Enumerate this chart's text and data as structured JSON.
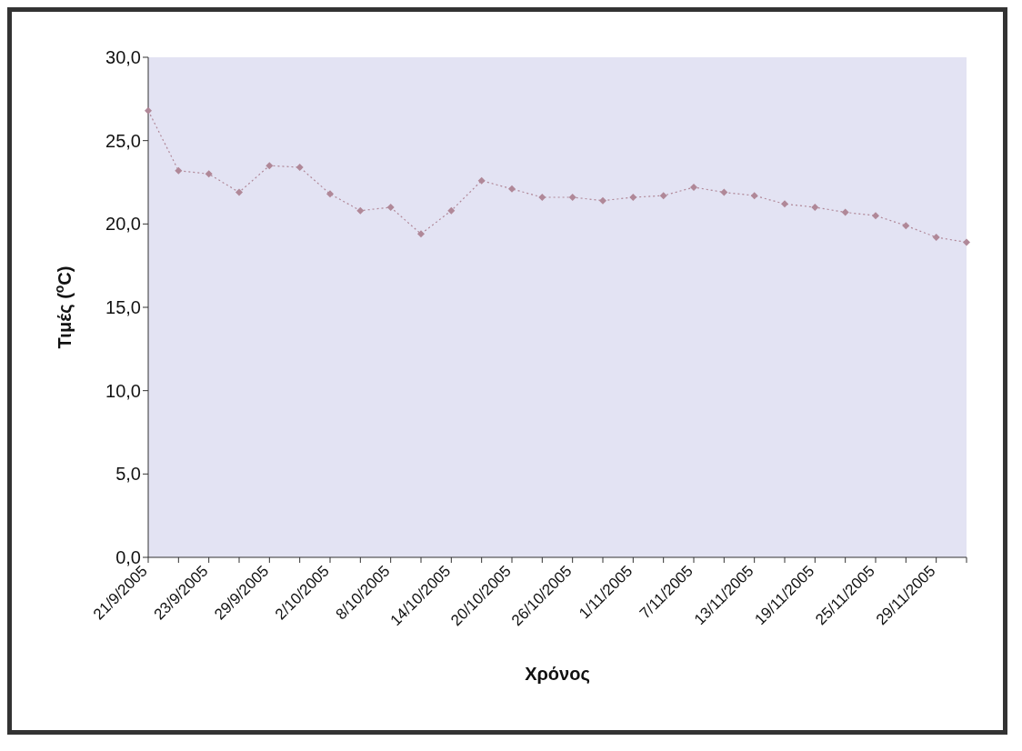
{
  "chart_data": {
    "type": "line",
    "xlabel": "Χρόνος",
    "ylabel": "Τιμές ($^{o}$C)",
    "categories": [
      "21/9/2005",
      null,
      "23/9/2005",
      null,
      "29/9/2005",
      null,
      "2/10/2005",
      null,
      "8/10/2005",
      null,
      "14/10/2005",
      null,
      "20/10/2005",
      null,
      "26/10/2005",
      null,
      "1/11/2005",
      null,
      "7/11/2005",
      null,
      "13/11/2005",
      null,
      "19/11/2005",
      null,
      "25/11/2005",
      null,
      "29/11/2005",
      null
    ],
    "series": [
      {
        "color": "#b08898",
        "values": [
          26.8,
          23.2,
          23.0,
          21.9,
          23.5,
          23.4,
          21.8,
          20.8,
          21.0,
          19.4,
          20.8,
          22.6,
          22.1,
          21.6,
          21.6,
          21.4,
          21.6,
          21.7,
          22.2,
          21.9,
          21.7,
          21.2,
          21.0,
          20.7,
          20.5,
          19.9,
          19.2,
          18.9
        ]
      }
    ],
    "ylim": [
      0,
      30
    ],
    "yticks": [
      {
        "value": 0,
        "label": "0,0"
      },
      {
        "value": 5,
        "label": "5,0"
      },
      {
        "value": 10,
        "label": "10,0"
      },
      {
        "value": 15,
        "label": "15,0"
      },
      {
        "value": 20,
        "label": "20,0"
      },
      {
        "value": 25,
        "label": "25,0"
      },
      {
        "value": 30,
        "label": "30,0"
      }
    ],
    "grid": false,
    "legend": false,
    "marker": "diamond",
    "line_style": "dotted"
  }
}
